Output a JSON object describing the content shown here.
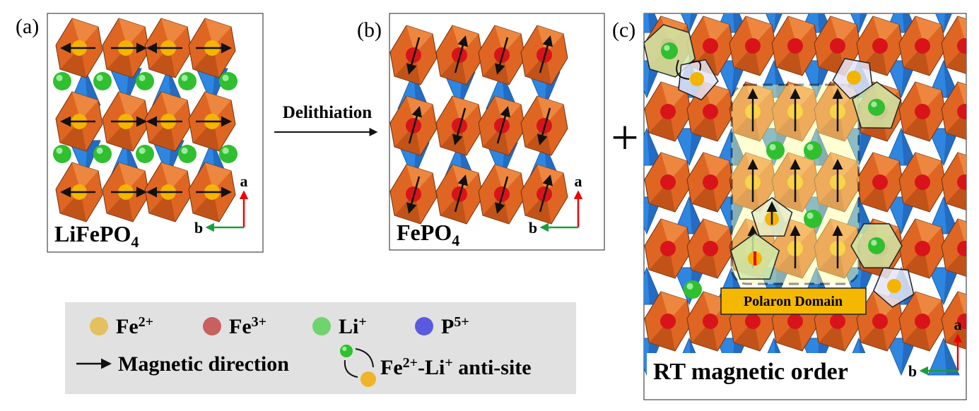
{
  "panels": [
    {
      "label": "(a)",
      "formula": {
        "main": "LiFePO",
        "sub": "4"
      },
      "axes": {
        "up": "a",
        "left": "b"
      }
    },
    {
      "label": "(b)",
      "formula": {
        "main": "FePO",
        "sub": "4"
      },
      "axes": {
        "up": "a",
        "left": "b"
      }
    },
    {
      "label": "(c)",
      "caption": "RT magnetic order",
      "domain_label": "Polaron Domain",
      "axes": {
        "up": "a",
        "left": "b"
      }
    }
  ],
  "arrow_label": "Delithiation",
  "plus": "+",
  "legend": {
    "ions": [
      {
        "symbol": "Fe",
        "charge": "2+",
        "color": "#e3c060"
      },
      {
        "symbol": "Fe",
        "charge": "3+",
        "color": "#c96060"
      },
      {
        "symbol": "Li",
        "charge": "+",
        "color": "#6fd36f"
      },
      {
        "symbol": "P",
        "charge": "5+",
        "color": "#5a5ae0"
      }
    ],
    "magnetic": "Magnetic direction",
    "antisite": [
      {
        "text": "Fe",
        "sup": false
      },
      {
        "text": "2+",
        "sup": true
      },
      {
        "text": "-Li",
        "sup": false
      },
      {
        "text": "+",
        "sup": true
      },
      {
        "text": " anti-site",
        "sup": false
      }
    ]
  }
}
